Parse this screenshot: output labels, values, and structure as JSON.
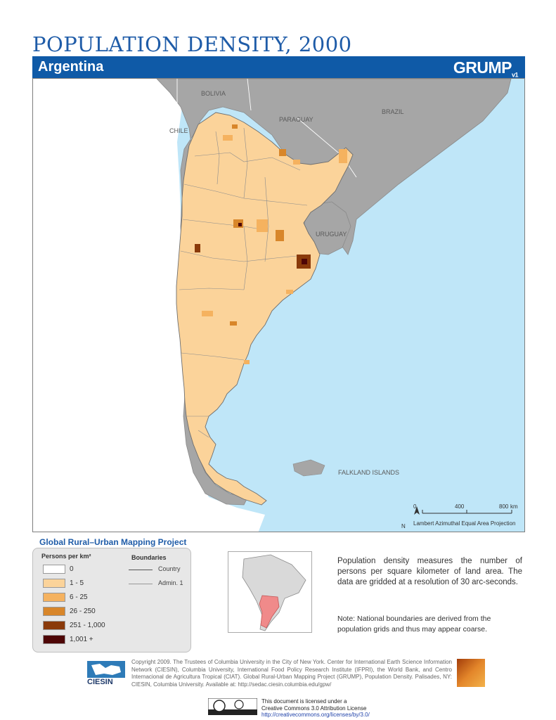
{
  "title": "POPULATION DENSITY, 2000",
  "country": "Argentina",
  "logo": {
    "main": "GRUMP",
    "sub": "v1"
  },
  "map_labels": {
    "bolivia": "BOLIVIA",
    "chile": "CHILE",
    "paraguay": "PARAGUAY",
    "brazil": "BRAZIL",
    "uruguay": "URUGUAY",
    "falklands": "FALKLAND ISLANDS"
  },
  "scale": {
    "t0": "0",
    "t1": "400",
    "t2": "800",
    "unit": "km",
    "north": "N",
    "projection": "Lambert Azimuthal Equal Area Projection"
  },
  "project_title": "Global Rural–Urban Mapping Project",
  "legend": {
    "density_header": "Persons per km²",
    "boundaries_header": "Boundaries",
    "classes": [
      {
        "label": "0",
        "color": "#ffffff"
      },
      {
        "label": "1 - 5",
        "color": "#fbd39a"
      },
      {
        "label": "6 - 25",
        "color": "#f5b25f"
      },
      {
        "label": "26 - 250",
        "color": "#d8862a"
      },
      {
        "label": "251 - 1,000",
        "color": "#8a3a0a"
      },
      {
        "label": "1,001 +",
        "color": "#4e0606"
      }
    ],
    "boundaries": [
      {
        "label": "Country"
      },
      {
        "label": "Admin. 1"
      }
    ]
  },
  "description": "Population density measures the number of persons per square kilometer of land area. The data are gridded at a resolution of 30 arc-seconds.",
  "note": "Note: National boundaries are derived from the population grids and thus may appear coarse.",
  "ciesin_label": "CIESIN",
  "copyright": "Copyright 2009. The Trustees of Columbia University in the City of New York. Center for International Earth Science Information Network (CIESIN), Columbia University, International Food Policy Research Institute (IFPRI), the World Bank, and Centro Internacional de Agricultura Tropical (CIAT). Global Rural-Urban Mapping Project (GRUMP), Population Density. Palisades, NY: CIESIN, Columbia University. Available at: http://sedac.ciesin.columbia.edu/gpw/",
  "license": {
    "line1": "This document is licensed under a",
    "line2": "Creative Commons 3.0 Attribution License",
    "url": "http://creativecommons.org/licenses/by/3.0/"
  },
  "colors": {
    "ocean": "#bfe6f8",
    "neighbor_land": "#a6a6a6",
    "argentina_base": "#fbd39a",
    "accent_blue": "#0f5aa7"
  }
}
